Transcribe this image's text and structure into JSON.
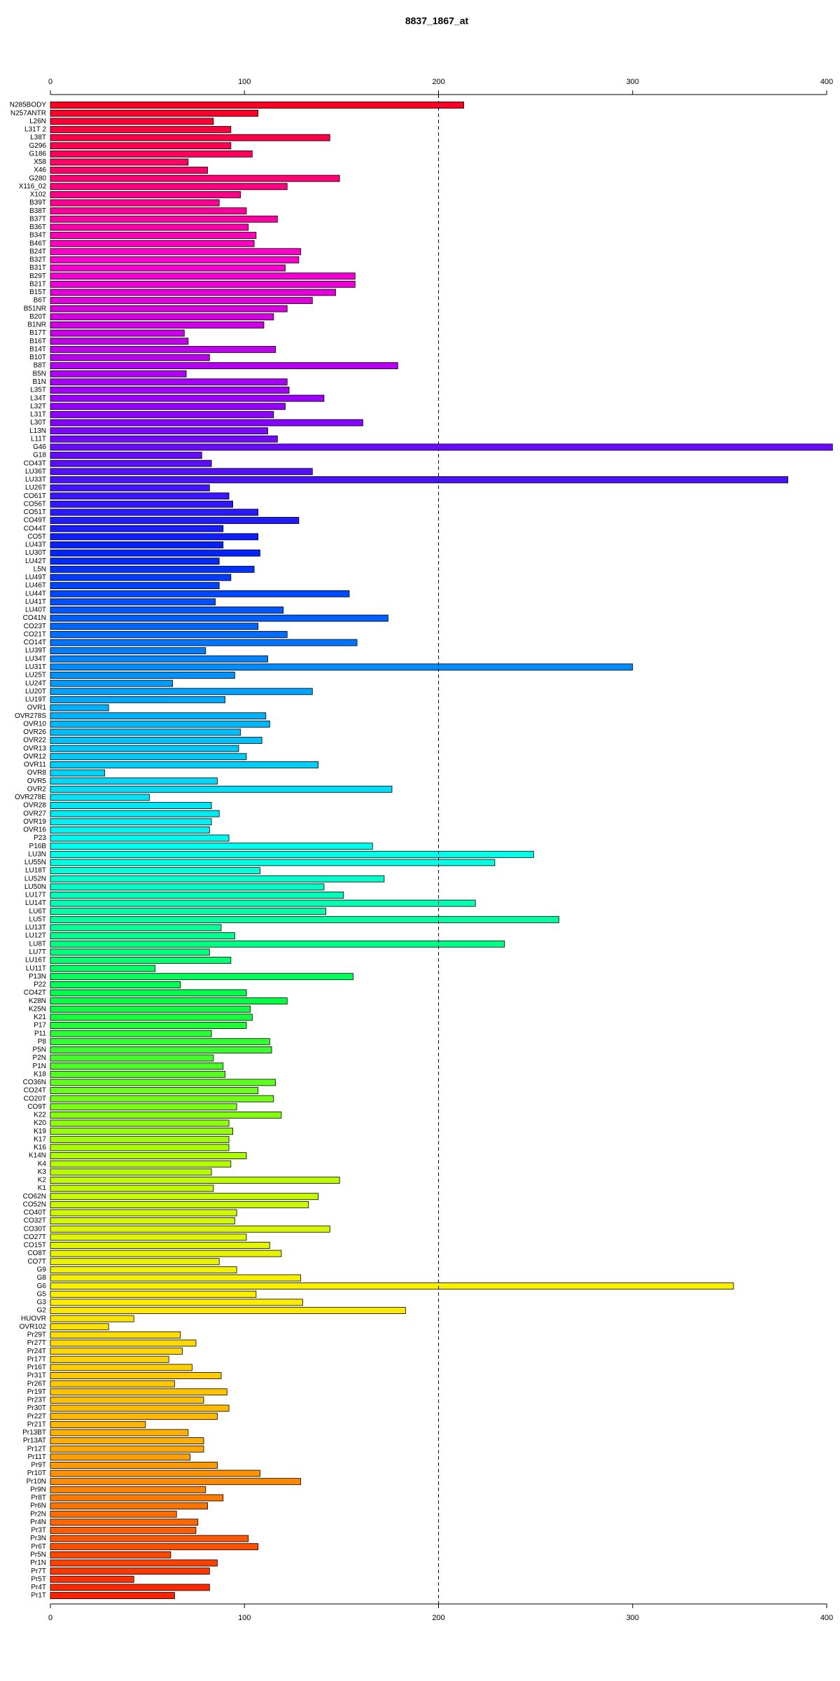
{
  "chart_data": {
    "type": "hbar",
    "title": "8837_1867_at",
    "categories": [
      "N285BODY",
      "N257ANTR",
      "L26N",
      "L31T 2",
      "L38T",
      "G296",
      "G186",
      "X58",
      "X46",
      "G280",
      "X116_02",
      "X102",
      "B39T",
      "B38T",
      "B37T",
      "B36T",
      "B34T",
      "B46T",
      "B24T",
      "B32T",
      "B31T",
      "B29T",
      "B21T",
      "B15T",
      "B6T",
      "B51NR",
      "B20T",
      "B1NR",
      "B17T",
      "B16T",
      "B14T",
      "B10T",
      "B8T",
      "B5N",
      "B1N",
      "L35T",
      "L34T",
      "L32T",
      "L31T",
      "L30T",
      "L13N",
      "L11T",
      "G46",
      "G18",
      "CO43T",
      "LU36T",
      "LU33T",
      "LU26T",
      "CO61T",
      "CO56T",
      "CO51T",
      "CO49T",
      "CO44T",
      "CO5T",
      "LU43T",
      "LU30T",
      "LU42T",
      "L5N",
      "LU49T",
      "LU46T",
      "LU44T",
      "LU41T",
      "LU40T",
      "CO41N",
      "CO23T",
      "CO21T",
      "CO14T",
      "LU39T",
      "LU34T",
      "LU31T",
      "LU25T",
      "LU24T",
      "LU20T",
      "LU19T",
      "OVR1",
      "OVR278S",
      "OVR10",
      "OVR26",
      "OVR22",
      "OVR13",
      "OVR12",
      "OVR11",
      "OVR8",
      "OVR5",
      "OVR2",
      "OVR278E",
      "OVR28",
      "OVR27",
      "OVR19",
      "OVR16",
      "P23",
      "P16B",
      "LU3N",
      "LU55N",
      "LU18T",
      "LU52N",
      "LU50N",
      "LU17T",
      "LU14T",
      "LU6T",
      "LU5T",
      "LU13T",
      "LU12T",
      "LU8T",
      "LU7T",
      "LU16T",
      "LU11T",
      "P13N",
      "P22",
      "CO42T",
      "K28N",
      "K25N",
      "K21",
      "P17",
      "P11",
      "P8",
      "P5N",
      "P2N",
      "P1N",
      "K18",
      "CO36N",
      "CO24T",
      "CO20T",
      "CO9T",
      "K22",
      "K20",
      "K19",
      "K17",
      "K16",
      "K14N",
      "K4",
      "K3",
      "K2",
      "K1",
      "CO62N",
      "CO52N",
      "CO40T",
      "CO32T",
      "CO30T",
      "CO27T",
      "CO15T",
      "CO8T",
      "CO7T",
      "G9",
      "G8",
      "G6",
      "G5",
      "G3",
      "G2",
      "HUOVR",
      "OVR102",
      "Pr29T",
      "Pr27T",
      "Pr24T",
      "Pr17T",
      "Pr16T",
      "Pr31T",
      "Pr26T",
      "Pr19T",
      "Pr23T",
      "Pr30T",
      "Pr22T",
      "Pr21T",
      "Pr13BT",
      "Pr13AT",
      "Pr12T",
      "Pr11T",
      "Pr9T",
      "Pr10T",
      "Pr10N",
      "Pr9N",
      "Pr8T",
      "Pr6N",
      "Pr2N",
      "Pr4N",
      "Pr3T",
      "Pr3N",
      "Pr6T",
      "Pr5N",
      "Pr1N",
      "Pr7T",
      "Pr5T",
      "Pr4T",
      "Pr1T"
    ],
    "values": [
      213,
      107,
      84,
      93,
      144,
      93,
      104,
      71,
      81,
      149,
      122,
      98,
      87,
      101,
      117,
      102,
      106,
      105,
      129,
      128,
      121,
      157,
      157,
      147,
      135,
      122,
      115,
      110,
      69,
      71,
      116,
      82,
      179,
      70,
      122,
      123,
      141,
      121,
      115,
      161,
      112,
      117,
      403,
      78,
      83,
      135,
      380,
      82,
      92,
      94,
      107,
      128,
      89,
      107,
      89,
      108,
      87,
      105,
      93,
      87,
      154,
      85,
      120,
      174,
      107,
      122,
      158,
      80,
      112,
      300,
      95,
      63,
      135,
      90,
      30,
      111,
      113,
      98,
      109,
      97,
      101,
      138,
      28,
      86,
      176,
      51,
      83,
      87,
      83,
      82,
      92,
      166,
      249,
      229,
      108,
      172,
      141,
      151,
      219,
      142,
      262,
      88,
      95,
      234,
      82,
      93,
      54,
      156,
      67,
      101,
      122,
      103,
      104,
      101,
      83,
      113,
      114,
      84,
      89,
      90,
      116,
      107,
      115,
      96,
      119,
      92,
      94,
      92,
      92,
      101,
      93,
      83,
      149,
      84,
      138,
      133,
      96,
      95,
      144,
      101,
      113,
      119,
      87,
      96,
      129,
      352,
      106,
      130,
      183,
      43,
      30,
      67,
      75,
      68,
      61,
      73,
      88,
      64,
      91,
      79,
      92,
      86,
      49,
      71,
      79,
      79,
      72,
      86,
      108,
      129,
      80,
      89,
      81,
      65,
      76,
      75,
      102,
      107,
      62,
      86,
      82,
      43,
      82,
      64
    ],
    "color_stops": [
      "#ff0022",
      "#ff00cc",
      "#9900ff",
      "#0022ff",
      "#00aaff",
      "#00ffee",
      "#00ff44",
      "#aaff00",
      "#ffee00",
      "#ffaa00",
      "#ff2200"
    ],
    "xlim": [
      0,
      400
    ],
    "xticks": [
      0,
      100,
      200,
      300,
      400
    ],
    "reference_line": 200
  }
}
